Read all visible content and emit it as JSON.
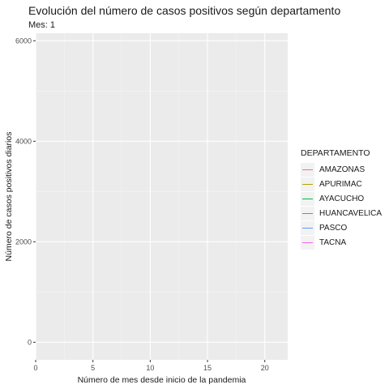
{
  "chart_data": {
    "type": "line",
    "title": "Evolución del número de casos positivos según departamento",
    "subtitle": "Mes: 1",
    "xlabel": "Número de mes desde inicio de la pandemia",
    "ylabel": "Número de casos positivos diarios",
    "xlim": [
      0,
      22
    ],
    "ylim": [
      -350,
      6150
    ],
    "x_ticks": [
      0,
      5,
      10,
      15,
      20
    ],
    "y_ticks": [
      0,
      2000,
      4000,
      6000
    ],
    "grid": true,
    "legend_position": "right",
    "legend_title": "DEPARTAMENTO",
    "series": [
      {
        "name": "AMAZONAS",
        "color": "#F8766D",
        "points": []
      },
      {
        "name": "APURIMAC",
        "color": "#B79F00",
        "points": []
      },
      {
        "name": "AYACUCHO",
        "color": "#00BA38",
        "points": []
      },
      {
        "name": "HUANCAVELICA",
        "color": "#00BFC4",
        "points": []
      },
      {
        "name": "PASCO",
        "color": "#619CFF",
        "points": []
      },
      {
        "name": "TACNA",
        "color": "#F564E3",
        "points": []
      }
    ]
  }
}
